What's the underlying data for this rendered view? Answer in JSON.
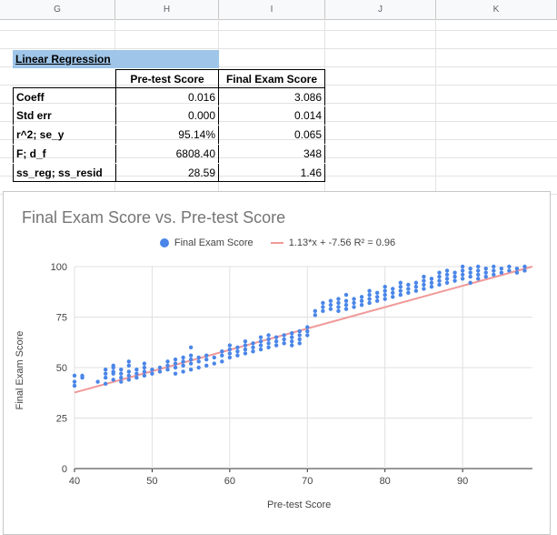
{
  "columns": [
    "G",
    "H",
    "I",
    "J",
    "K"
  ],
  "table": {
    "title": "Linear Regression",
    "header": [
      "",
      "Pre-test Score",
      "Final Exam Score"
    ],
    "rows": [
      [
        "Coeff",
        "0.016",
        "3.086"
      ],
      [
        "Std err",
        "0.000",
        "0.014"
      ],
      [
        "r^2; se_y",
        "95.14%",
        "0.065"
      ],
      [
        "F; d_f",
        "6808.40",
        "348"
      ],
      [
        "ss_reg; ss_resid",
        "28.59",
        "1.46"
      ]
    ]
  },
  "chart_data": {
    "type": "scatter",
    "title": "Final Exam Score vs. Pre-test Score",
    "xlabel": "Pre-test Score",
    "ylabel": "Final Exam Score",
    "xlim": [
      40,
      99
    ],
    "ylim": [
      0,
      100
    ],
    "xticks": [
      "40",
      "50",
      "60",
      "70",
      "80",
      "90"
    ],
    "yticks": [
      "0",
      "25",
      "50",
      "75",
      "100"
    ],
    "legend": [
      "Final Exam Score",
      "1.13*x + -7.56 R² = 0.96"
    ],
    "legend_position": "top",
    "series_color": "#4a86e8",
    "trend_color": "#f19999",
    "trendline": {
      "slope": 1.13,
      "intercept": -7.56,
      "r2": 0.96
    },
    "points": [
      [
        40,
        41
      ],
      [
        40,
        43
      ],
      [
        40,
        46
      ],
      [
        41,
        46
      ],
      [
        41,
        45
      ],
      [
        43,
        43
      ],
      [
        44,
        42
      ],
      [
        44,
        45
      ],
      [
        44,
        47
      ],
      [
        44,
        49
      ],
      [
        45,
        44
      ],
      [
        45,
        47
      ],
      [
        45,
        48
      ],
      [
        45,
        50
      ],
      [
        45,
        51
      ],
      [
        46,
        43
      ],
      [
        46,
        45
      ],
      [
        46,
        47
      ],
      [
        46,
        49
      ],
      [
        47,
        44
      ],
      [
        47,
        46
      ],
      [
        47,
        48
      ],
      [
        47,
        51
      ],
      [
        47,
        53
      ],
      [
        48,
        45
      ],
      [
        48,
        47
      ],
      [
        48,
        49
      ],
      [
        49,
        46
      ],
      [
        49,
        48
      ],
      [
        49,
        50
      ],
      [
        49,
        52
      ],
      [
        50,
        47
      ],
      [
        50,
        49
      ],
      [
        51,
        48
      ],
      [
        51,
        50
      ],
      [
        52,
        49
      ],
      [
        52,
        51
      ],
      [
        52,
        53
      ],
      [
        53,
        47
      ],
      [
        53,
        50
      ],
      [
        53,
        52
      ],
      [
        53,
        54
      ],
      [
        54,
        48
      ],
      [
        54,
        51
      ],
      [
        54,
        53
      ],
      [
        54,
        55
      ],
      [
        55,
        49
      ],
      [
        55,
        52
      ],
      [
        55,
        54
      ],
      [
        55,
        56
      ],
      [
        55,
        60
      ],
      [
        56,
        50
      ],
      [
        56,
        53
      ],
      [
        56,
        55
      ],
      [
        57,
        51
      ],
      [
        57,
        54
      ],
      [
        57,
        56
      ],
      [
        58,
        52
      ],
      [
        58,
        55
      ],
      [
        59,
        53
      ],
      [
        59,
        56
      ],
      [
        59,
        58
      ],
      [
        60,
        55
      ],
      [
        60,
        57
      ],
      [
        60,
        59
      ],
      [
        60,
        61
      ],
      [
        61,
        56
      ],
      [
        61,
        58
      ],
      [
        61,
        60
      ],
      [
        62,
        57
      ],
      [
        62,
        59
      ],
      [
        62,
        61
      ],
      [
        62,
        63
      ],
      [
        63,
        58
      ],
      [
        63,
        60
      ],
      [
        63,
        62
      ],
      [
        64,
        59
      ],
      [
        64,
        61
      ],
      [
        64,
        63
      ],
      [
        64,
        65
      ],
      [
        65,
        60
      ],
      [
        65,
        62
      ],
      [
        65,
        64
      ],
      [
        65,
        66
      ],
      [
        66,
        61
      ],
      [
        66,
        63
      ],
      [
        66,
        65
      ],
      [
        67,
        62
      ],
      [
        67,
        64
      ],
      [
        67,
        66
      ],
      [
        68,
        61
      ],
      [
        68,
        63
      ],
      [
        68,
        65
      ],
      [
        68,
        67
      ],
      [
        69,
        62
      ],
      [
        69,
        64
      ],
      [
        69,
        66
      ],
      [
        69,
        68
      ],
      [
        70,
        66
      ],
      [
        70,
        68
      ],
      [
        70,
        70
      ],
      [
        71,
        76
      ],
      [
        71,
        78
      ],
      [
        72,
        78
      ],
      [
        72,
        80
      ],
      [
        72,
        82
      ],
      [
        73,
        79
      ],
      [
        73,
        81
      ],
      [
        73,
        83
      ],
      [
        74,
        78
      ],
      [
        74,
        80
      ],
      [
        74,
        82
      ],
      [
        74,
        84
      ],
      [
        75,
        79
      ],
      [
        75,
        81
      ],
      [
        75,
        83
      ],
      [
        75,
        86
      ],
      [
        76,
        80
      ],
      [
        76,
        82
      ],
      [
        76,
        84
      ],
      [
        77,
        81
      ],
      [
        77,
        83
      ],
      [
        77,
        85
      ],
      [
        78,
        82
      ],
      [
        78,
        84
      ],
      [
        78,
        86
      ],
      [
        78,
        88
      ],
      [
        79,
        83
      ],
      [
        79,
        85
      ],
      [
        79,
        87
      ],
      [
        80,
        84
      ],
      [
        80,
        86
      ],
      [
        80,
        88
      ],
      [
        80,
        90
      ],
      [
        81,
        85
      ],
      [
        81,
        87
      ],
      [
        81,
        89
      ],
      [
        82,
        86
      ],
      [
        82,
        88
      ],
      [
        82,
        90
      ],
      [
        82,
        92
      ],
      [
        83,
        87
      ],
      [
        83,
        89
      ],
      [
        83,
        91
      ],
      [
        84,
        88
      ],
      [
        84,
        90
      ],
      [
        84,
        92
      ],
      [
        85,
        89
      ],
      [
        85,
        91
      ],
      [
        85,
        93
      ],
      [
        85,
        95
      ],
      [
        86,
        90
      ],
      [
        86,
        92
      ],
      [
        86,
        94
      ],
      [
        87,
        91
      ],
      [
        87,
        93
      ],
      [
        87,
        95
      ],
      [
        87,
        97
      ],
      [
        88,
        92
      ],
      [
        88,
        94
      ],
      [
        88,
        96
      ],
      [
        88,
        98
      ],
      [
        89,
        93
      ],
      [
        89,
        95
      ],
      [
        89,
        97
      ],
      [
        90,
        94
      ],
      [
        90,
        96
      ],
      [
        90,
        98
      ],
      [
        90,
        100
      ],
      [
        91,
        92
      ],
      [
        91,
        95
      ],
      [
        91,
        97
      ],
      [
        91,
        99
      ],
      [
        92,
        94
      ],
      [
        92,
        96
      ],
      [
        92,
        98
      ],
      [
        92,
        100
      ],
      [
        93,
        95
      ],
      [
        93,
        97
      ],
      [
        93,
        99
      ],
      [
        94,
        96
      ],
      [
        94,
        98
      ],
      [
        94,
        100
      ],
      [
        95,
        97
      ],
      [
        95,
        99
      ],
      [
        96,
        98
      ],
      [
        96,
        100
      ],
      [
        97,
        97
      ],
      [
        97,
        99
      ],
      [
        98,
        98
      ],
      [
        98,
        100
      ]
    ]
  }
}
